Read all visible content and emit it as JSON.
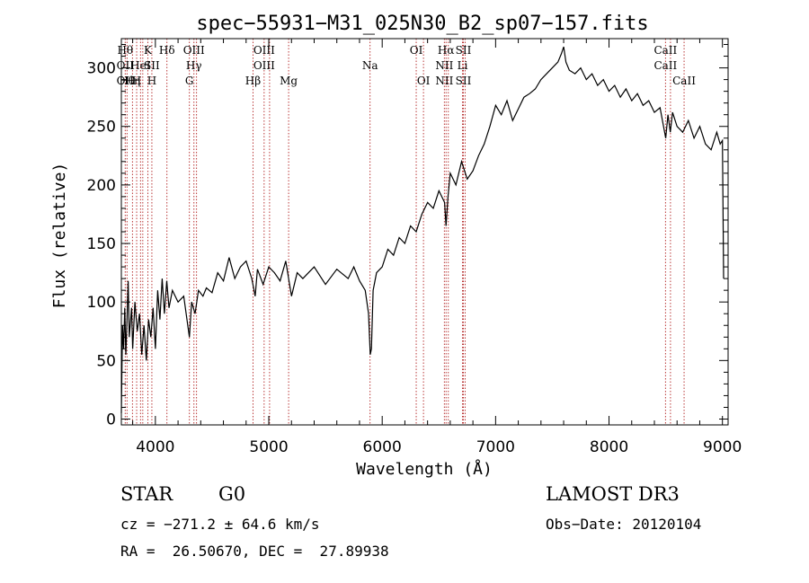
{
  "chart_data": {
    "type": "line",
    "title": "spec−55931−M31_025N30_B2_sp07−157.fits",
    "xlabel": "Wavelength (Å)",
    "ylabel": "Flux (relative)",
    "xlim": [
      3700,
      9050
    ],
    "ylim": [
      -5,
      325
    ],
    "x_ticks": [
      4000,
      5000,
      6000,
      7000,
      8000,
      9000
    ],
    "y_ticks": [
      0,
      50,
      100,
      150,
      200,
      250,
      300
    ],
    "series": [
      {
        "name": "flux",
        "points": [
          [
            3700,
            5
          ],
          [
            3710,
            80
          ],
          [
            3720,
            60
          ],
          [
            3730,
            95
          ],
          [
            3740,
            55
          ],
          [
            3750,
            85
          ],
          [
            3760,
            118
          ],
          [
            3770,
            70
          ],
          [
            3790,
            95
          ],
          [
            3800,
            60
          ],
          [
            3820,
            100
          ],
          [
            3840,
            75
          ],
          [
            3860,
            90
          ],
          [
            3880,
            55
          ],
          [
            3900,
            80
          ],
          [
            3920,
            50
          ],
          [
            3940,
            85
          ],
          [
            3960,
            70
          ],
          [
            3980,
            95
          ],
          [
            4000,
            60
          ],
          [
            4020,
            110
          ],
          [
            4040,
            85
          ],
          [
            4060,
            120
          ],
          [
            4080,
            90
          ],
          [
            4100,
            118
          ],
          [
            4120,
            95
          ],
          [
            4150,
            110
          ],
          [
            4200,
            100
          ],
          [
            4250,
            105
          ],
          [
            4300,
            70
          ],
          [
            4320,
            100
          ],
          [
            4350,
            90
          ],
          [
            4380,
            110
          ],
          [
            4420,
            105
          ],
          [
            4450,
            112
          ],
          [
            4500,
            108
          ],
          [
            4550,
            125
          ],
          [
            4600,
            118
          ],
          [
            4650,
            138
          ],
          [
            4700,
            120
          ],
          [
            4750,
            130
          ],
          [
            4800,
            135
          ],
          [
            4850,
            120
          ],
          [
            4880,
            105
          ],
          [
            4900,
            128
          ],
          [
            4950,
            115
          ],
          [
            5000,
            130
          ],
          [
            5050,
            125
          ],
          [
            5100,
            118
          ],
          [
            5150,
            135
          ],
          [
            5200,
            105
          ],
          [
            5250,
            125
          ],
          [
            5300,
            120
          ],
          [
            5400,
            130
          ],
          [
            5500,
            115
          ],
          [
            5600,
            128
          ],
          [
            5700,
            120
          ],
          [
            5750,
            130
          ],
          [
            5800,
            118
          ],
          [
            5850,
            110
          ],
          [
            5880,
            90
          ],
          [
            5895,
            55
          ],
          [
            5905,
            60
          ],
          [
            5920,
            110
          ],
          [
            5950,
            125
          ],
          [
            6000,
            130
          ],
          [
            6050,
            145
          ],
          [
            6100,
            140
          ],
          [
            6150,
            155
          ],
          [
            6200,
            150
          ],
          [
            6250,
            165
          ],
          [
            6300,
            160
          ],
          [
            6350,
            175
          ],
          [
            6400,
            185
          ],
          [
            6450,
            180
          ],
          [
            6500,
            195
          ],
          [
            6550,
            185
          ],
          [
            6563,
            165
          ],
          [
            6580,
            190
          ],
          [
            6600,
            210
          ],
          [
            6650,
            200
          ],
          [
            6700,
            220
          ],
          [
            6750,
            205
          ],
          [
            6800,
            212
          ],
          [
            6850,
            225
          ],
          [
            6900,
            235
          ],
          [
            6950,
            250
          ],
          [
            7000,
            268
          ],
          [
            7050,
            260
          ],
          [
            7100,
            272
          ],
          [
            7150,
            255
          ],
          [
            7200,
            265
          ],
          [
            7250,
            275
          ],
          [
            7300,
            278
          ],
          [
            7350,
            282
          ],
          [
            7400,
            290
          ],
          [
            7450,
            295
          ],
          [
            7500,
            300
          ],
          [
            7550,
            305
          ],
          [
            7580,
            312
          ],
          [
            7600,
            318
          ],
          [
            7620,
            305
          ],
          [
            7650,
            298
          ],
          [
            7700,
            295
          ],
          [
            7750,
            300
          ],
          [
            7800,
            290
          ],
          [
            7850,
            295
          ],
          [
            7900,
            285
          ],
          [
            7950,
            290
          ],
          [
            8000,
            280
          ],
          [
            8050,
            285
          ],
          [
            8100,
            275
          ],
          [
            8150,
            282
          ],
          [
            8200,
            272
          ],
          [
            8250,
            278
          ],
          [
            8300,
            268
          ],
          [
            8350,
            272
          ],
          [
            8400,
            262
          ],
          [
            8450,
            266
          ],
          [
            8500,
            240
          ],
          [
            8520,
            260
          ],
          [
            8540,
            245
          ],
          [
            8560,
            262
          ],
          [
            8600,
            250
          ],
          [
            8650,
            245
          ],
          [
            8700,
            255
          ],
          [
            8750,
            240
          ],
          [
            8800,
            250
          ],
          [
            8850,
            235
          ],
          [
            8900,
            230
          ],
          [
            8950,
            245
          ],
          [
            8980,
            235
          ],
          [
            9000,
            238
          ],
          [
            9010,
            120
          ]
        ]
      }
    ],
    "line_markers": [
      {
        "wl": 3734,
        "labels": [
          "Hθ",
          "OII",
          "OII"
        ]
      },
      {
        "wl": 3750,
        "labels": [
          "",
          "",
          "Hθ"
        ]
      },
      {
        "wl": 3798,
        "labels": [
          "",
          "",
          "Hη"
        ]
      },
      {
        "wl": 3835,
        "labels": [
          "",
          "",
          "H"
        ]
      },
      {
        "wl": 3869,
        "labels": [
          "",
          "HeI",
          ""
        ]
      },
      {
        "wl": 3889,
        "labels": [
          "",
          "",
          ""
        ]
      },
      {
        "wl": 3934,
        "labels": [
          "K",
          "",
          ""
        ]
      },
      {
        "wl": 3969,
        "labels": [
          "",
          "SII",
          "H"
        ]
      },
      {
        "wl": 4102,
        "labels": [
          "Hδ",
          "",
          ""
        ]
      },
      {
        "wl": 4300,
        "labels": [
          "",
          "",
          "G"
        ]
      },
      {
        "wl": 4340,
        "labels": [
          "OIII",
          "Hγ",
          ""
        ]
      },
      {
        "wl": 4363,
        "labels": [
          "",
          "",
          ""
        ]
      },
      {
        "wl": 4861,
        "labels": [
          "",
          "",
          "Hβ"
        ]
      },
      {
        "wl": 4959,
        "labels": [
          "OIII",
          "OIII",
          ""
        ]
      },
      {
        "wl": 5007,
        "labels": [
          "",
          "",
          ""
        ]
      },
      {
        "wl": 5175,
        "labels": [
          "",
          "",
          "Mg"
        ]
      },
      {
        "wl": 5893,
        "labels": [
          "",
          "Na",
          ""
        ]
      },
      {
        "wl": 6300,
        "labels": [
          "OI",
          "",
          ""
        ]
      },
      {
        "wl": 6364,
        "labels": [
          "",
          "",
          "OI"
        ]
      },
      {
        "wl": 6548,
        "labels": [
          "",
          "NII",
          "NII"
        ]
      },
      {
        "wl": 6563,
        "labels": [
          "Hα",
          "",
          ""
        ]
      },
      {
        "wl": 6583,
        "labels": [
          "",
          "",
          ""
        ]
      },
      {
        "wl": 6708,
        "labels": [
          "",
          "Li",
          ""
        ]
      },
      {
        "wl": 6716,
        "labels": [
          "SII",
          "",
          "SII"
        ]
      },
      {
        "wl": 6731,
        "labels": [
          "",
          "",
          ""
        ]
      },
      {
        "wl": 8498,
        "labels": [
          "CaII",
          "CaII",
          ""
        ]
      },
      {
        "wl": 8542,
        "labels": [
          "",
          "",
          ""
        ]
      },
      {
        "wl": 8662,
        "labels": [
          "",
          "",
          "CaII"
        ]
      }
    ],
    "colors": {
      "spectrum": "#000000",
      "markers": "#b22222"
    }
  },
  "info": {
    "class_type": "STAR",
    "subclass": "G0",
    "survey": "LAMOST DR3",
    "cz": "cz = −271.2 ± 64.6 km/s",
    "obs_date": "Obs−Date: 20120104",
    "coords": "RA =  26.50670, DEC =  27.89938"
  }
}
